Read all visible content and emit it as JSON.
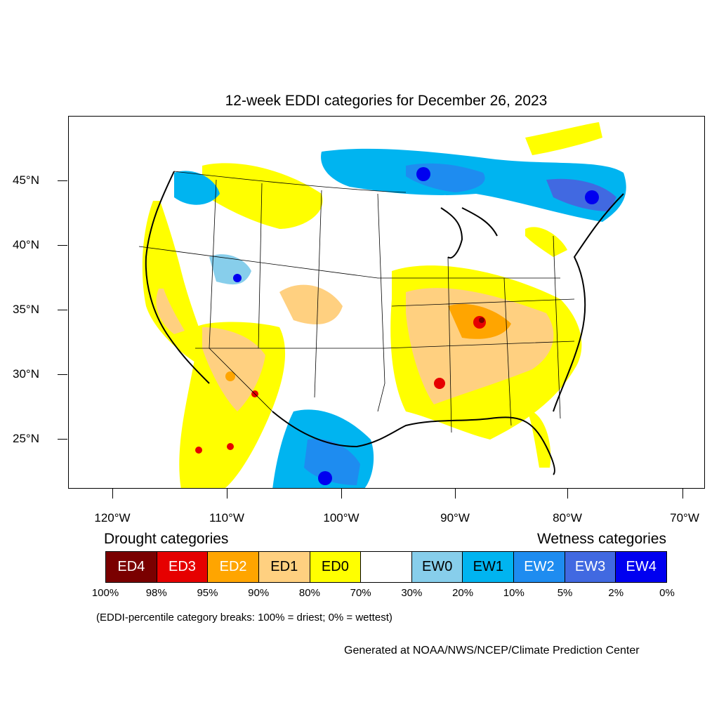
{
  "title": "12-week EDDI categories for December 26, 2023",
  "lat_labels": [
    "45°N",
    "40°N",
    "35°N",
    "30°N",
    "25°N"
  ],
  "lon_labels": [
    "120°W",
    "110°W",
    "100°W",
    "90°W",
    "80°W",
    "70°W"
  ],
  "legend": {
    "drought_heading": "Drought categories",
    "wetness_heading": "Wetness categories",
    "categories": [
      {
        "label": "ED4",
        "color": "#7a0000",
        "text_color": "#ffffff"
      },
      {
        "label": "ED3",
        "color": "#e60000",
        "text_color": "#ffffff"
      },
      {
        "label": "ED2",
        "color": "#ffa500",
        "text_color": "#ffffff"
      },
      {
        "label": "ED1",
        "color": "#ffd080",
        "text_color": "#000000"
      },
      {
        "label": "ED0",
        "color": "#ffff00",
        "text_color": "#000000"
      },
      {
        "label": "",
        "color": "#ffffff",
        "text_color": "#000000"
      },
      {
        "label": "EW0",
        "color": "#87ceeb",
        "text_color": "#000000"
      },
      {
        "label": "EW1",
        "color": "#00b4f0",
        "text_color": "#000000"
      },
      {
        "label": "EW2",
        "color": "#1e8cf0",
        "text_color": "#ffffff"
      },
      {
        "label": "EW3",
        "color": "#4169e1",
        "text_color": "#ffffff"
      },
      {
        "label": "EW4",
        "color": "#0000f0",
        "text_color": "#ffffff"
      }
    ],
    "percent_breaks": [
      "100%",
      "98%",
      "95%",
      "90%",
      "80%",
      "70%",
      "30%",
      "20%",
      "10%",
      "5%",
      "2%",
      "0%"
    ]
  },
  "note": "(EDDI-percentile category breaks: 100% = driest; 0% = wettest)",
  "credit": "Generated at NOAA/NWS/NCEP/Climate Prediction Center"
}
